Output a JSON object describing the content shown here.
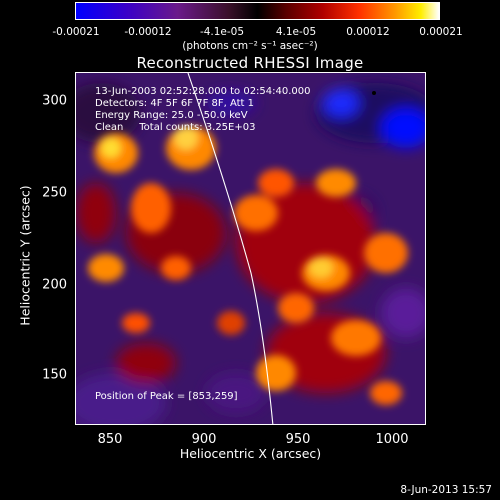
{
  "colorbar": {
    "ticks": [
      "-0.00021",
      "-0.00012",
      "-4.1e-05",
      "4.1e-05",
      "0.00012",
      "0.00021"
    ],
    "units": "(photons cm⁻² s⁻¹ asec⁻²)",
    "colors": {
      "min": "#0000ff",
      "mid": "#000000",
      "max": "#ffffff"
    }
  },
  "title": "Reconstructed RHESSI Image",
  "info": {
    "time": "13-Jun-2003 02:52:28.000 to 02:54:40.000",
    "detectors": "Detectors: 4F 5F 6F 7F 8F, Att 1",
    "energy": "Energy Range: 25.0 - 50.0 keV",
    "clean": "Clean     Total counts: 3.25E+03"
  },
  "peak": "Position of Peak = [853,259]",
  "axes": {
    "xlabel": "Heliocentric X (arcsec)",
    "ylabel": "Heliocentric Y (arcsec)",
    "xticks": [
      "850",
      "900",
      "950",
      "1000"
    ],
    "yticks": [
      "300",
      "250",
      "200",
      "150"
    ]
  },
  "timestamp": "8-Jun-2013 15:57"
}
